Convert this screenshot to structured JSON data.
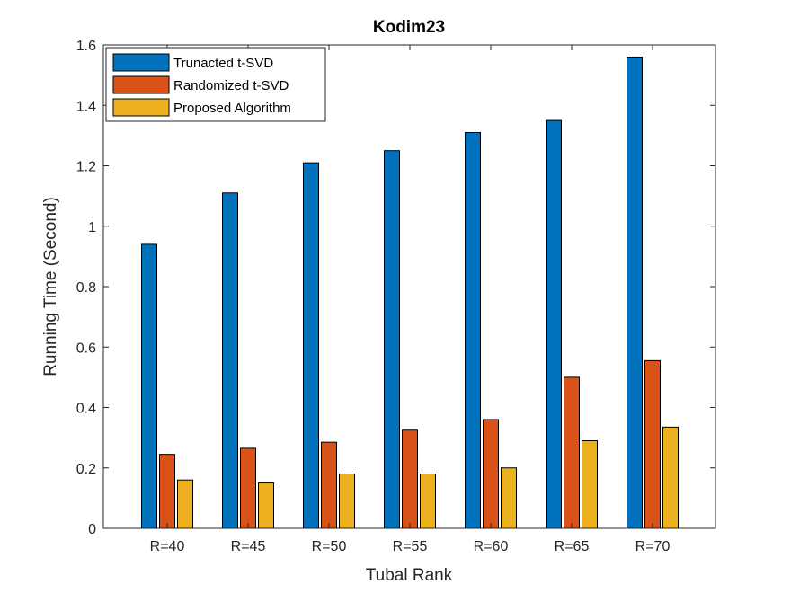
{
  "chart_data": {
    "type": "bar",
    "title": "Kodim23",
    "xlabel": "Tubal Rank",
    "ylabel": "Running Time (Second)",
    "categories": [
      "R=40",
      "R=45",
      "R=50",
      "R=55",
      "R=60",
      "R=65",
      "R=70"
    ],
    "ylim": [
      0,
      1.6
    ],
    "yticks": [
      0,
      0.2,
      0.4,
      0.6,
      0.8,
      1,
      1.2,
      1.4,
      1.6
    ],
    "ytick_labels": [
      "0",
      "0.2",
      "0.4",
      "0.6",
      "0.8",
      "1",
      "1.2",
      "1.4",
      "1.6"
    ],
    "grid": false,
    "legend_position": "top-left",
    "series": [
      {
        "name": "Trunacted t-SVD",
        "color": "#0072BD",
        "values": [
          0.94,
          1.11,
          1.21,
          1.25,
          1.31,
          1.35,
          1.56
        ]
      },
      {
        "name": "Randomized t-SVD",
        "color": "#D95319",
        "values": [
          0.245,
          0.265,
          0.285,
          0.325,
          0.36,
          0.5,
          0.555
        ]
      },
      {
        "name": "Proposed Algorithm",
        "color": "#EDB120",
        "values": [
          0.16,
          0.15,
          0.18,
          0.18,
          0.2,
          0.29,
          0.335
        ]
      }
    ]
  }
}
